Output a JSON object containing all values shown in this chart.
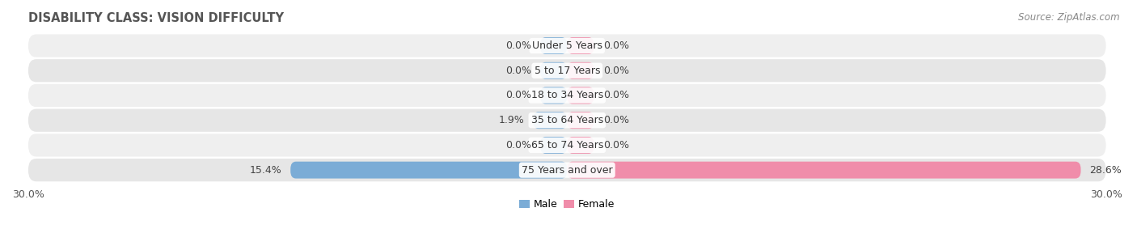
{
  "title": "DISABILITY CLASS: VISION DIFFICULTY",
  "source": "Source: ZipAtlas.com",
  "categories": [
    "Under 5 Years",
    "5 to 17 Years",
    "18 to 34 Years",
    "35 to 64 Years",
    "65 to 74 Years",
    "75 Years and over"
  ],
  "male_values": [
    0.0,
    0.0,
    0.0,
    1.9,
    0.0,
    15.4
  ],
  "female_values": [
    0.0,
    0.0,
    0.0,
    0.0,
    0.0,
    28.6
  ],
  "max_val": 30.0,
  "male_color": "#7bacd6",
  "female_color": "#f08daa",
  "row_bg_even": "#efefef",
  "row_bg_odd": "#e6e6e6",
  "label_fontsize": 9.0,
  "title_fontsize": 10.5,
  "source_fontsize": 8.5,
  "axis_label_fontsize": 9.0,
  "legend_fontsize": 9.0,
  "min_bar_display": 1.5
}
